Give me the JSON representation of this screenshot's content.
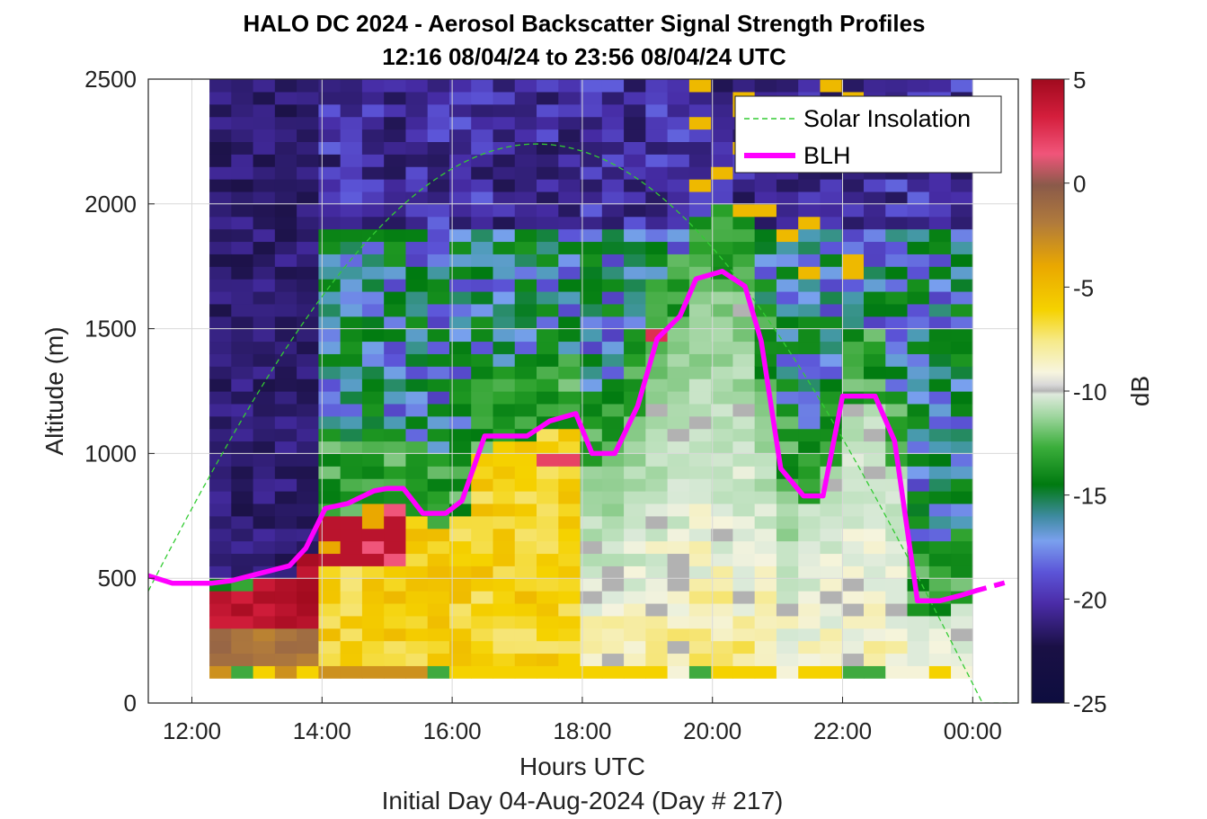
{
  "chart_data": {
    "type": "heatmap",
    "title": "HALO DC 2024 - Aerosol Backscatter Signal Strength Profiles",
    "subtitle": "12:16 08/04/24 to 23:56 08/04/24  UTC",
    "xlabel": "Hours UTC",
    "xlabel2": "Initial Day 04-Aug-2024 (Day # 217)",
    "ylabel": "Altitude (m)",
    "colorbar_label": "dB",
    "xlim": [
      11.33,
      24.7
    ],
    "ylim": [
      0,
      2500
    ],
    "x_ticks": [
      12,
      14,
      16,
      18,
      20,
      22,
      24
    ],
    "x_tick_labels": [
      "12:00",
      "14:00",
      "16:00",
      "18:00",
      "20:00",
      "22:00",
      "00:00"
    ],
    "y_ticks": [
      0,
      500,
      1000,
      1500,
      2000,
      2500
    ],
    "y_tick_labels": [
      "0",
      "500",
      "1000",
      "1500",
      "2000",
      "2500"
    ],
    "clim": [
      -25,
      5
    ],
    "colorbar_ticks": [
      5,
      0,
      -5,
      -10,
      -15,
      -20,
      -25
    ],
    "colorbar_tick_labels": [
      "5",
      "0",
      "-5",
      "-10",
      "-15",
      "-20",
      "-25"
    ],
    "grid": true,
    "legend": {
      "position": "top-right",
      "entries": [
        "Solar Insolation",
        "BLH"
      ]
    },
    "data_coverage": {
      "x_start": 12.27,
      "x_end": 24.0,
      "y_start": 100,
      "y_end": 2500
    },
    "blh": {
      "name": "BLH",
      "color": "#ff00ff",
      "x": [
        11.33,
        11.7,
        12.0,
        12.3,
        12.6,
        12.9,
        13.2,
        13.5,
        13.75,
        14.05,
        14.4,
        14.8,
        15.0,
        15.25,
        15.55,
        15.9,
        16.15,
        16.5,
        16.85,
        17.15,
        17.5,
        17.9,
        18.15,
        18.5,
        18.85,
        19.15,
        19.5,
        19.75,
        20.15,
        20.5,
        20.75,
        21.05,
        21.4,
        21.7,
        22.0,
        22.2,
        22.5,
        22.8,
        23.15,
        23.5,
        23.8,
        24.05
      ],
      "y": [
        510,
        480,
        480,
        480,
        490,
        510,
        530,
        550,
        620,
        780,
        800,
        850,
        860,
        860,
        760,
        760,
        810,
        1070,
        1070,
        1070,
        1130,
        1160,
        1000,
        1000,
        1190,
        1460,
        1550,
        1700,
        1730,
        1670,
        1450,
        940,
        830,
        830,
        1230,
        1230,
        1230,
        1050,
        410,
        410,
        430,
        450
      ]
    },
    "blh_extension": {
      "x": [
        24.05,
        24.6
      ],
      "y": [
        450,
        490
      ]
    },
    "solar_insolation": {
      "name": "Solar Insolation",
      "color": "#33cc33",
      "peak_time": 17.3,
      "peak_altitude": 2240,
      "half_width_hours": 6.85,
      "reaches_zero_at": 24.2
    }
  }
}
